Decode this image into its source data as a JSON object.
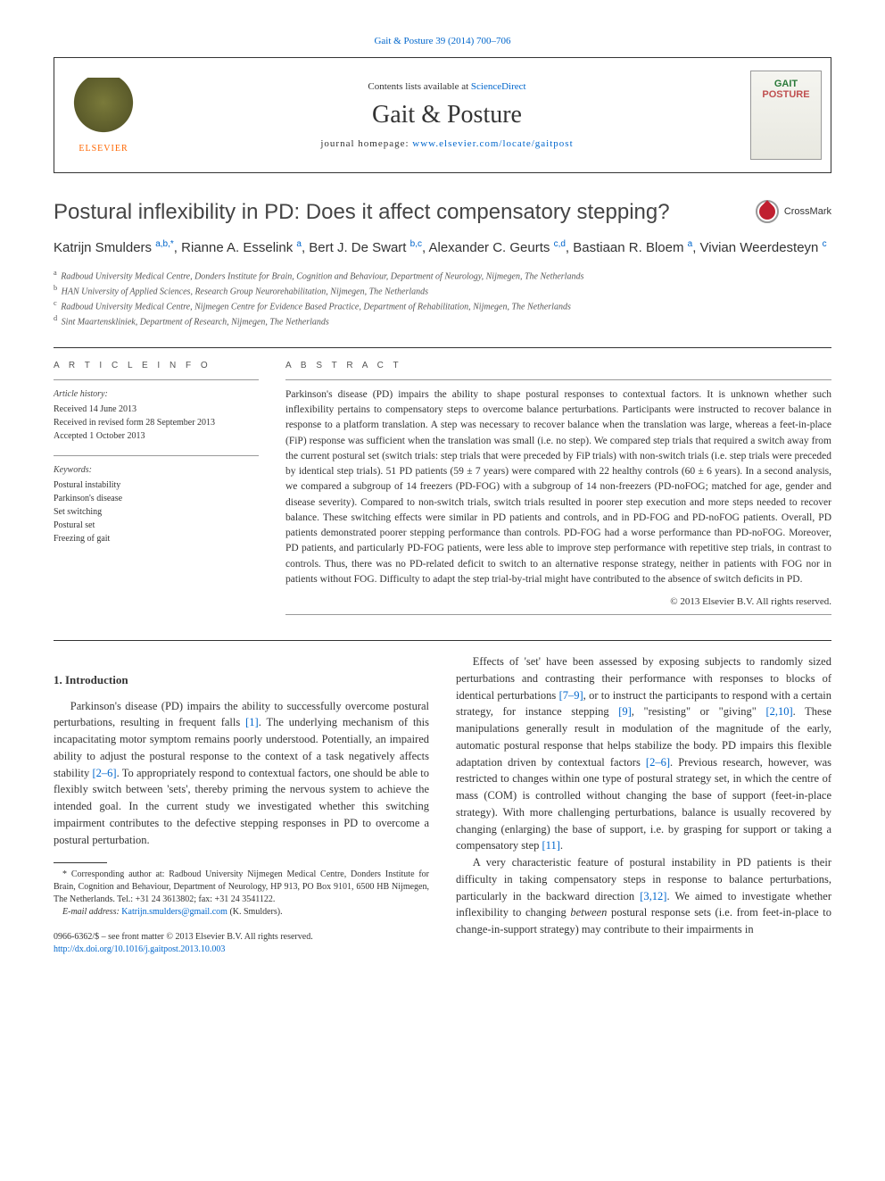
{
  "journal_ref_prefix": "Gait & Posture 39 (2014) 700–706",
  "header": {
    "contents_prefix": "Contents lists available at ",
    "contents_link": "ScienceDirect",
    "journal_name": "Gait & Posture",
    "homepage_prefix": "journal homepage: ",
    "homepage_link": "www.elsevier.com/locate/gaitpost",
    "elsevier_label": "ELSEVIER",
    "cover_line1": "GAIT",
    "cover_line2": "POSTURE"
  },
  "title": "Postural inflexibility in PD: Does it affect compensatory stepping?",
  "crossmark_label": "CrossMark",
  "authors_html": "Katrijn Smulders <sup>a,b,*</sup>, Rianne A. Esselink <sup>a</sup>, Bert J. De Swart <sup>b,c</sup>, Alexander C. Geurts <sup>c,d</sup>, Bastiaan R. Bloem <sup>a</sup>, Vivian Weerdesteyn <sup>c</sup>",
  "affiliations": [
    {
      "sup": "a",
      "text": "Radboud University Medical Centre, Donders Institute for Brain, Cognition and Behaviour, Department of Neurology, Nijmegen, The Netherlands"
    },
    {
      "sup": "b",
      "text": "HAN University of Applied Sciences, Research Group Neurorehabilitation, Nijmegen, The Netherlands"
    },
    {
      "sup": "c",
      "text": "Radboud University Medical Centre, Nijmegen Centre for Evidence Based Practice, Department of Rehabilitation, Nijmegen, The Netherlands"
    },
    {
      "sup": "d",
      "text": "Sint Maartenskliniek, Department of Research, Nijmegen, The Netherlands"
    }
  ],
  "info": {
    "section_label": "A R T I C L E   I N F O",
    "history_label": "Article history:",
    "history": [
      "Received 14 June 2013",
      "Received in revised form 28 September 2013",
      "Accepted 1 October 2013"
    ],
    "keywords_label": "Keywords:",
    "keywords": [
      "Postural instability",
      "Parkinson's disease",
      "Set switching",
      "Postural set",
      "Freezing of gait"
    ]
  },
  "abstract": {
    "section_label": "A B S T R A C T",
    "text": "Parkinson's disease (PD) impairs the ability to shape postural responses to contextual factors. It is unknown whether such inflexibility pertains to compensatory steps to overcome balance perturbations. Participants were instructed to recover balance in response to a platform translation. A step was necessary to recover balance when the translation was large, whereas a feet-in-place (FiP) response was sufficient when the translation was small (i.e. no step). We compared step trials that required a switch away from the current postural set (switch trials: step trials that were preceded by FiP trials) with non-switch trials (i.e. step trials were preceded by identical step trials). 51 PD patients (59 ± 7 years) were compared with 22 healthy controls (60 ± 6 years). In a second analysis, we compared a subgroup of 14 freezers (PD-FOG) with a subgroup of 14 non-freezers (PD-noFOG; matched for age, gender and disease severity). Compared to non-switch trials, switch trials resulted in poorer step execution and more steps needed to recover balance. These switching effects were similar in PD patients and controls, and in PD-FOG and PD-noFOG patients. Overall, PD patients demonstrated poorer stepping performance than controls. PD-FOG had a worse performance than PD-noFOG. Moreover, PD patients, and particularly PD-FOG patients, were less able to improve step performance with repetitive step trials, in contrast to controls. Thus, there was no PD-related deficit to switch to an alternative response strategy, neither in patients with FOG nor in patients without FOG. Difficulty to adapt the step trial-by-trial might have contributed to the absence of switch deficits in PD.",
    "copyright": "© 2013 Elsevier B.V. All rights reserved."
  },
  "intro": {
    "heading": "1. Introduction",
    "col1_p1": "Parkinson's disease (PD) impairs the ability to successfully overcome postural perturbations, resulting in frequent falls [1]. The underlying mechanism of this incapacitating motor symptom remains poorly understood. Potentially, an impaired ability to adjust the postural response to the context of a task negatively affects stability [2–6]. To appropriately respond to contextual factors, one should be able to flexibly switch between 'sets', thereby priming the nervous system to achieve the intended goal. In the current study we investigated whether this switching impairment contributes to the defective stepping responses in PD to overcome a postural perturbation.",
    "col2_p1": "Effects of 'set' have been assessed by exposing subjects to randomly sized perturbations and contrasting their performance with responses to blocks of identical perturbations [7–9], or to instruct the participants to respond with a certain strategy, for instance stepping [9], \"resisting\" or \"giving\" [2,10]. These manipulations generally result in modulation of the magnitude of the early, automatic postural response that helps stabilize the body. PD impairs this flexible adaptation driven by contextual factors [2–6]. Previous research, however, was restricted to changes within one type of postural strategy set, in which the centre of mass (COM) is controlled without changing the base of support (feet-in-place strategy). With more challenging perturbations, balance is usually recovered by changing (enlarging) the base of support, i.e. by grasping for support or taking a compensatory step [11].",
    "col2_p2": "A very characteristic feature of postural instability in PD patients is their difficulty in taking compensatory steps in response to balance perturbations, particularly in the backward direction [3,12]. We aimed to investigate whether inflexibility to changing between postural response sets (i.e. from feet-in-place to change-in-support strategy) may contribute to their impairments in"
  },
  "ref_links_col1": [
    "[1]",
    "[2–6]"
  ],
  "ref_links_col2": [
    "[7–9]",
    "[9]",
    "[2,10]",
    "[2–6]",
    "[11]",
    "[3,12]"
  ],
  "footnotes": {
    "corresponding": "* Corresponding author at: Radboud University Nijmegen Medical Centre, Donders Institute for Brain, Cognition and Behaviour, Department of Neurology, HP 913, PO Box 9101, 6500 HB Nijmegen, The Netherlands. Tel.: +31 24 3613802; fax: +31 24 3541122.",
    "email_label": "E-mail address: ",
    "email": "Katrijn.smulders@gmail.com",
    "email_suffix": " (K. Smulders)."
  },
  "bottom": {
    "issn_line": "0966-6362/$ – see front matter © 2013 Elsevier B.V. All rights reserved.",
    "doi": "http://dx.doi.org/10.1016/j.gaitpost.2013.10.003"
  },
  "colors": {
    "link": "#0066cc",
    "text": "#333333",
    "elsevier_orange": "#ff6600",
    "cover_green": "#2a7a3a",
    "cover_red": "#c05050"
  },
  "typography": {
    "body_font": "Georgia, 'Times New Roman', serif",
    "sans_font": "Arial, sans-serif",
    "title_fontsize": 24,
    "journal_name_fontsize": 28,
    "authors_fontsize": 15,
    "abstract_fontsize": 11.5,
    "body_fontsize": 12.5,
    "footnote_fontsize": 10
  }
}
